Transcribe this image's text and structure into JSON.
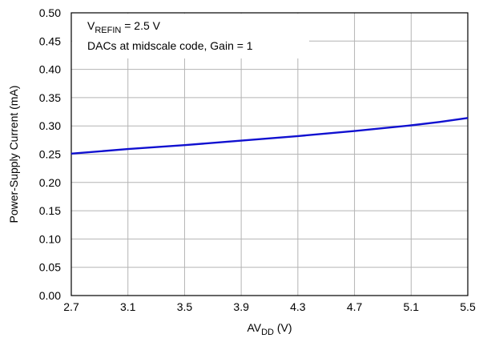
{
  "chart_data": {
    "type": "line",
    "title": "",
    "xlabel": {
      "main": "AV",
      "sub": "DD",
      "unit": " (V)"
    },
    "ylabel": "Power-Supply Current (mA)",
    "xlim": [
      2.7,
      5.5
    ],
    "ylim": [
      0.0,
      0.5
    ],
    "x_ticks": [
      2.7,
      3.1,
      3.5,
      3.9,
      4.3,
      4.7,
      5.1,
      5.5
    ],
    "x_tick_labels": [
      "2.7",
      "3.1",
      "3.5",
      "3.9",
      "4.3",
      "4.7",
      "5.1",
      "5.5"
    ],
    "y_ticks": [
      0.0,
      0.05,
      0.1,
      0.15,
      0.2,
      0.25,
      0.3,
      0.35,
      0.4,
      0.45,
      0.5
    ],
    "y_tick_labels": [
      "0.00",
      "0.05",
      "0.10",
      "0.15",
      "0.20",
      "0.25",
      "0.30",
      "0.35",
      "0.40",
      "0.45",
      "0.50"
    ],
    "grid": true,
    "annotation": {
      "line1": {
        "main": "V",
        "sub": "REFIN",
        "rest": " = 2.5 V"
      },
      "line2": "DACs at midscale code, Gain = 1"
    },
    "series": [
      {
        "color": "#1010d0",
        "x": [
          2.7,
          3.1,
          3.5,
          3.9,
          4.3,
          4.7,
          5.1,
          5.3,
          5.5
        ],
        "y": [
          0.251,
          0.259,
          0.266,
          0.274,
          0.282,
          0.291,
          0.301,
          0.307,
          0.314
        ]
      }
    ]
  }
}
